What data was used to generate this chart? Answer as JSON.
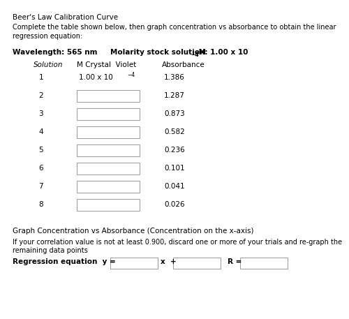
{
  "title": "Beer's Law Calibration Curve",
  "intro_text": "Complete the table shown below, then graph concentration vs absorbance to obtain the linear\nregression equation:",
  "bold_wavelength": "Wavelength: 565 nm",
  "bold_molarity": "Molarity stock solution: 1.00 x 10",
  "molarity_exp": "−4",
  "molarity_unit": " M",
  "col_header_solution": "Solution",
  "col_header_molarity": "M Crystal  Violet",
  "col_header_absorbance": "Absorbance",
  "solutions": [
    1,
    2,
    3,
    4,
    5,
    6,
    7,
    8
  ],
  "solution1_molarity": "1.00 x 10",
  "solution1_exp": "−4",
  "absorbances": [
    "1.386",
    "1.287",
    "0.873",
    "0.582",
    "0.236",
    "0.101",
    "0.041",
    "0.026"
  ],
  "graph_label": "Graph Concentration vs Absorbance (Concentration on the x-axis)",
  "corr_line1": "If your correlation value is not at least 0.900, discard one or more of your trials and re-graph the",
  "corr_line2": "remaining data points",
  "reg_label": "Regression equation  y =",
  "x_label": "x  +",
  "r_label": "R =",
  "bg_color": "#ffffff",
  "text_color": "#000000",
  "box_color": "#ffffff",
  "box_edge_color": "#999999"
}
